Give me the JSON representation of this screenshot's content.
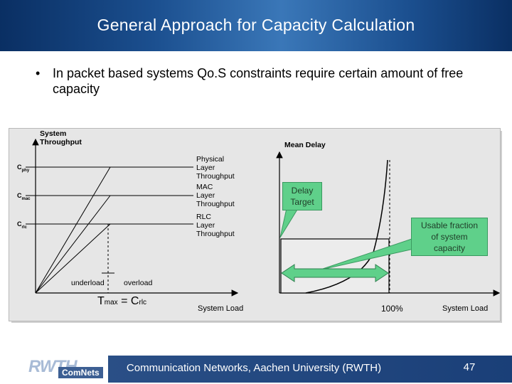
{
  "slide": {
    "title": "General Approach for Capacity Calculation",
    "bullet_marker": "•",
    "bullet_text": "In packet based systems Qo.S constraints require certain amount of free capacity"
  },
  "left_chart": {
    "y_axis_label_line1": "System",
    "y_axis_label_line2": "Throughput",
    "x_axis_label": "System Load",
    "levels": [
      {
        "main": "C",
        "sub": "phy"
      },
      {
        "main": "C",
        "sub": "mac"
      },
      {
        "main": "C",
        "sub": "rlc"
      }
    ],
    "curve_labels": [
      {
        "line1": "Physical",
        "line2": "Layer",
        "line3": "Throughput"
      },
      {
        "line1": "MAC",
        "line2": "Layer",
        "line3": "Throughput"
      },
      {
        "line1": "RLC",
        "line2": "Layer",
        "line3": "Throughput"
      }
    ],
    "region_left": "underload",
    "region_right": "overload",
    "equation": {
      "t": "T",
      "t_sub": "max",
      "eq": " = ",
      "c": "C",
      "c_sub": "rlc"
    }
  },
  "right_chart": {
    "y_axis_label": "Mean Delay",
    "x_axis_label": "System Load",
    "x_marker": "100%",
    "delay_target_line1": "Delay",
    "delay_target_line2": "Target",
    "usable_line1": "Usable fraction",
    "usable_line2": "of system",
    "usable_line3": "capacity"
  },
  "footer": {
    "logo_main": "RWTH",
    "logo_sub": "ComNets",
    "text": "Communication Networks, Aachen University (RWTH)",
    "page": "47"
  },
  "colors": {
    "title_bar": "#1b4f8f",
    "panel": "#e6e6e6",
    "callout": "#5fd08a",
    "footer_bar": "#1a3f78"
  }
}
